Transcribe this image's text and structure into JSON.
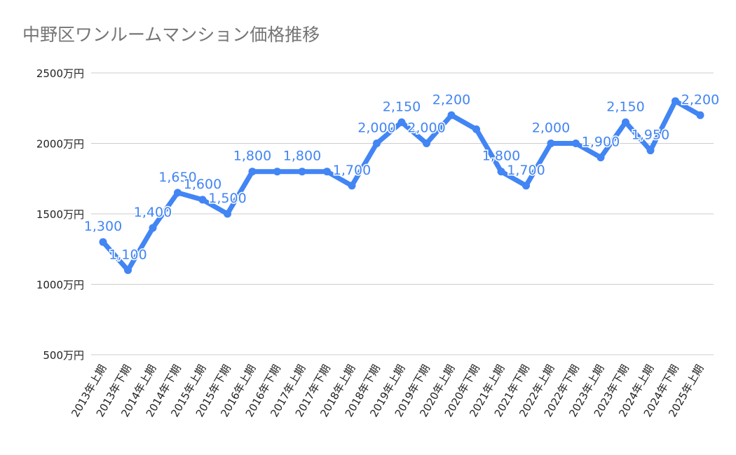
{
  "chart_data": {
    "type": "line",
    "title": "中野区ワンルームマンション価格推移",
    "xlabel": "",
    "ylabel": "",
    "ylim": [
      500,
      2500
    ],
    "yticks": [
      500,
      1000,
      1500,
      2000,
      2500
    ],
    "ytick_labels": [
      "500万円",
      "1000万円",
      "1500万円",
      "2000万円",
      "2500万円"
    ],
    "grid": true,
    "categories": [
      "2013年上期",
      "2013年下期",
      "2014年上期",
      "2014年下期",
      "2015年上期",
      "2015年下期",
      "2016年上期",
      "2016年下期",
      "2017年上期",
      "2017年下期",
      "2018年上期",
      "2018年下期",
      "2019年上期",
      "2019年下期",
      "2020年上期",
      "2020年下期",
      "2021年上期",
      "2021年下期",
      "2022年上期",
      "2022年下期",
      "2023年上期",
      "2023年下期",
      "2024年上期",
      "2024年下期",
      "2025年上期"
    ],
    "values": [
      1300,
      1100,
      1400,
      1650,
      1600,
      1500,
      1800,
      1800,
      1800,
      1800,
      1700,
      2000,
      2150,
      2000,
      2200,
      2100,
      1800,
      1700,
      2000,
      2000,
      1900,
      2150,
      1950,
      2300,
      2200
    ],
    "data_labels": [
      "1,300",
      "1,100",
      "1,400",
      "1,650",
      "1,600",
      "1,500",
      "1,800",
      null,
      "1,800",
      null,
      "1,700",
      "2,000",
      "2,150",
      "2,000",
      "2,200",
      null,
      "1,800",
      "1,700",
      "2,000",
      null,
      "1,900",
      "2,150",
      "1,950",
      null,
      "2,200"
    ],
    "line_color": "#4285f4"
  }
}
